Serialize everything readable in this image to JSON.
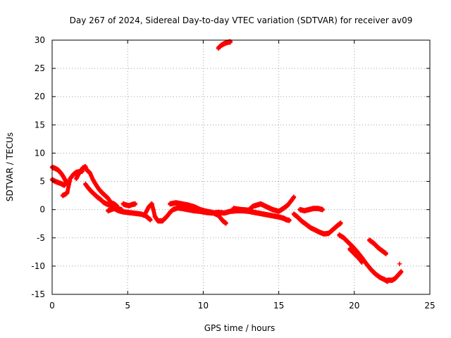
{
  "chart_data": {
    "type": "scatter",
    "title": "Day 267 of 2024, Sidereal Day-to-day VTEC variation (SDTVAR) for receiver av09",
    "xlabel": "GPS time / hours",
    "ylabel": "SDTVAR / TECUs",
    "xlim": [
      0,
      25
    ],
    "ylim": [
      -15,
      30
    ],
    "xticks": [
      0,
      5,
      10,
      15,
      20,
      25
    ],
    "yticks": [
      -15,
      -10,
      -5,
      0,
      5,
      10,
      15,
      20,
      25,
      30
    ],
    "grid": true,
    "marker": "+",
    "series": [
      {
        "name": "SDTVAR",
        "color": "#ff0000",
        "segments": [
          [
            [
              0.0,
              7.5
            ],
            [
              0.2,
              7.3
            ],
            [
              0.4,
              7.0
            ],
            [
              0.6,
              6.4
            ],
            [
              0.75,
              5.8
            ],
            [
              0.9,
              5.0
            ],
            [
              1.0,
              4.7
            ]
          ],
          [
            [
              0.0,
              5.3
            ],
            [
              0.2,
              5.0
            ],
            [
              0.4,
              4.8
            ],
            [
              0.6,
              4.6
            ],
            [
              0.8,
              4.3
            ],
            [
              1.0,
              5.0
            ]
          ],
          [
            [
              0.7,
              2.5
            ],
            [
              0.85,
              2.7
            ],
            [
              1.0,
              3.0
            ],
            [
              1.2,
              5.5
            ],
            [
              1.4,
              6.2
            ],
            [
              1.6,
              6.6
            ],
            [
              1.8,
              6.7
            ],
            [
              2.0,
              6.8
            ]
          ],
          [
            [
              1.6,
              5.5
            ],
            [
              1.8,
              6.5
            ],
            [
              2.0,
              7.3
            ],
            [
              2.2,
              7.6
            ],
            [
              2.3,
              7.0
            ],
            [
              2.5,
              6.5
            ],
            [
              2.7,
              5.3
            ],
            [
              2.9,
              4.4
            ],
            [
              3.1,
              3.6
            ],
            [
              3.3,
              3.0
            ],
            [
              3.5,
              2.5
            ],
            [
              3.7,
              2.0
            ],
            [
              3.9,
              1.2
            ],
            [
              4.1,
              1.0
            ],
            [
              4.3,
              0.6
            ]
          ],
          [
            [
              2.2,
              4.5
            ],
            [
              2.4,
              3.8
            ],
            [
              2.6,
              3.2
            ],
            [
              2.8,
              2.7
            ],
            [
              3.0,
              2.2
            ],
            [
              3.2,
              1.8
            ],
            [
              3.4,
              1.3
            ],
            [
              3.6,
              1.0
            ],
            [
              3.8,
              0.8
            ],
            [
              4.0,
              0.4
            ],
            [
              4.2,
              0.2
            ],
            [
              4.4,
              0.1
            ],
            [
              4.6,
              0.0
            ]
          ],
          [
            [
              3.7,
              -0.2
            ],
            [
              3.9,
              0.0
            ],
            [
              4.1,
              0.2
            ],
            [
              4.4,
              -0.2
            ],
            [
              4.7,
              -0.4
            ],
            [
              5.0,
              -0.5
            ],
            [
              5.3,
              -0.6
            ],
            [
              5.6,
              -0.7
            ],
            [
              5.9,
              -0.8
            ],
            [
              6.2,
              -1.1
            ],
            [
              6.5,
              -1.8
            ]
          ],
          [
            [
              4.7,
              1.0
            ],
            [
              4.9,
              0.8
            ],
            [
              5.1,
              0.7
            ],
            [
              5.3,
              0.9
            ],
            [
              5.5,
              1.0
            ]
          ],
          [
            [
              6.2,
              -0.5
            ],
            [
              6.4,
              0.5
            ],
            [
              6.6,
              1.0
            ],
            [
              6.7,
              0.0
            ],
            [
              6.8,
              -1.2
            ],
            [
              7.0,
              -2.0
            ],
            [
              7.3,
              -2.0
            ],
            [
              7.6,
              -1.2
            ],
            [
              7.8,
              -0.5
            ],
            [
              8.0,
              0.0
            ],
            [
              8.3,
              0.3
            ],
            [
              8.6,
              0.2
            ],
            [
              9.0,
              0.0
            ],
            [
              9.4,
              -0.2
            ],
            [
              9.8,
              -0.3
            ],
            [
              10.2,
              -0.5
            ],
            [
              10.6,
              -0.6
            ],
            [
              11.0,
              -0.5
            ],
            [
              11.4,
              -0.6
            ],
            [
              11.8,
              -0.3
            ],
            [
              12.2,
              -0.2
            ],
            [
              12.6,
              -0.2
            ],
            [
              13.0,
              -0.3
            ],
            [
              13.4,
              -0.5
            ],
            [
              13.8,
              -0.7
            ],
            [
              14.2,
              -0.9
            ],
            [
              14.6,
              -1.1
            ],
            [
              15.0,
              -1.3
            ],
            [
              15.4,
              -1.6
            ]
          ],
          [
            [
              7.8,
              1.0
            ],
            [
              8.2,
              1.2
            ],
            [
              8.6,
              1.0
            ],
            [
              9.0,
              0.8
            ],
            [
              9.4,
              0.5
            ],
            [
              9.8,
              0.0
            ],
            [
              10.2,
              -0.3
            ],
            [
              10.6,
              -0.5
            ],
            [
              11.0,
              -1.0
            ],
            [
              11.3,
              -2.0
            ],
            [
              11.5,
              -2.4
            ]
          ],
          [
            [
              12.0,
              0.2
            ],
            [
              12.5,
              0.0
            ],
            [
              13.0,
              -0.1
            ],
            [
              13.3,
              0.6
            ],
            [
              13.8,
              1.0
            ],
            [
              14.2,
              0.5
            ],
            [
              14.6,
              0.0
            ],
            [
              15.0,
              -0.3
            ],
            [
              15.3,
              0.2
            ],
            [
              15.6,
              0.8
            ],
            [
              15.8,
              1.5
            ],
            [
              16.0,
              2.2
            ]
          ],
          [
            [
              11.0,
              28.6
            ],
            [
              11.2,
              29.1
            ],
            [
              11.4,
              29.4
            ],
            [
              11.6,
              29.6
            ],
            [
              11.8,
              29.7
            ]
          ],
          [
            [
              15.3,
              -1.5
            ],
            [
              15.5,
              -1.8
            ],
            [
              15.7,
              -1.9
            ]
          ],
          [
            [
              16.0,
              -0.8
            ],
            [
              16.2,
              -1.2
            ],
            [
              16.5,
              -2.0
            ],
            [
              16.8,
              -2.6
            ],
            [
              17.1,
              -3.2
            ],
            [
              17.4,
              -3.6
            ],
            [
              17.7,
              -4.0
            ],
            [
              18.0,
              -4.3
            ],
            [
              18.3,
              -4.2
            ],
            [
              18.6,
              -3.5
            ],
            [
              18.9,
              -2.8
            ],
            [
              19.1,
              -2.4
            ]
          ],
          [
            [
              16.4,
              0.0
            ],
            [
              16.7,
              -0.2
            ],
            [
              17.0,
              0.0
            ],
            [
              17.3,
              0.2
            ],
            [
              17.6,
              0.2
            ],
            [
              17.9,
              0.0
            ]
          ],
          [
            [
              19.0,
              -4.5
            ],
            [
              19.3,
              -5.0
            ],
            [
              19.6,
              -5.8
            ],
            [
              19.9,
              -6.6
            ],
            [
              20.2,
              -7.5
            ],
            [
              20.5,
              -8.5
            ],
            [
              20.8,
              -9.6
            ],
            [
              21.1,
              -10.6
            ],
            [
              21.4,
              -11.4
            ],
            [
              21.7,
              -12.0
            ],
            [
              22.0,
              -12.4
            ],
            [
              22.2,
              -12.7
            ]
          ],
          [
            [
              19.7,
              -7.0
            ],
            [
              20.0,
              -7.8
            ],
            [
              20.3,
              -8.6
            ],
            [
              20.5,
              -9.3
            ]
          ],
          [
            [
              21.0,
              -5.4
            ],
            [
              21.3,
              -6.0
            ],
            [
              21.6,
              -6.8
            ],
            [
              21.9,
              -7.4
            ],
            [
              22.1,
              -7.8
            ]
          ],
          [
            [
              22.2,
              -12.5
            ],
            [
              22.5,
              -12.5
            ],
            [
              22.7,
              -12.2
            ],
            [
              22.9,
              -11.6
            ],
            [
              23.1,
              -11.0
            ]
          ],
          [
            [
              23.0,
              -9.6
            ]
          ]
        ]
      }
    ]
  }
}
